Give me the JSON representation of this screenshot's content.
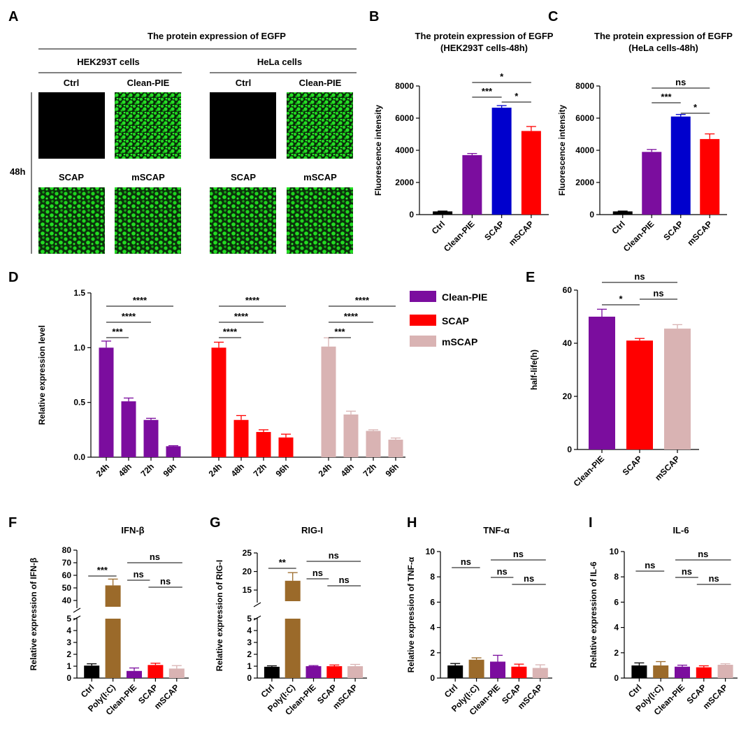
{
  "colors": {
    "ctrl": "#000000",
    "clean_pie": "#7B0D9E",
    "scap_blue": "#0000CD",
    "scap": "#FF0000",
    "mscap": "#D9B3B3",
    "polyic": "#9B6A2A",
    "green": "#1FD41F"
  },
  "panel_A": {
    "label": "A",
    "title": "The protein expression of EGFP",
    "groups": [
      {
        "name": "HEK293T cells",
        "top": [
          "Ctrl",
          "Clean-PIE"
        ],
        "bottom": [
          "SCAP",
          "mSCAP"
        ]
      },
      {
        "name": "HeLa cells",
        "top": [
          "Ctrl",
          "Clean-PIE"
        ],
        "bottom": [
          "SCAP",
          "mSCAP"
        ]
      }
    ],
    "timepoint": "48h"
  },
  "chart_data": [
    {
      "id": "B",
      "type": "bar",
      "label": "B",
      "title": "The protein expression of EGFP",
      "subtitle": "(HEK293T cells-48h)",
      "ylabel": "Fluorescence intensity",
      "xlabel": "",
      "ylim": [
        0,
        8000
      ],
      "yticks": [
        "0",
        "2000",
        "4000",
        "6000",
        "8000"
      ],
      "categories": [
        "Ctrl",
        "Clean-PIE",
        "SCAP",
        "mSCAP"
      ],
      "values": [
        200,
        3700,
        6650,
        5200
      ],
      "errors": [
        20,
        100,
        130,
        280
      ],
      "bar_colors": [
        "#000000",
        "#7B0D9E",
        "#0000CD",
        "#FF0000"
      ],
      "sig": [
        "***",
        "*",
        "*"
      ]
    },
    {
      "id": "C",
      "type": "bar",
      "label": "C",
      "title": "The protein expression of EGFP",
      "subtitle": "(HeLa cells-48h)",
      "ylabel": "Fluorescence intensity",
      "xlabel": "",
      "ylim": [
        0,
        8000
      ],
      "yticks": [
        "0",
        "2000",
        "4000",
        "6000",
        "8000"
      ],
      "categories": [
        "Ctrl",
        "Clean-PIE",
        "SCAP",
        "mSCAP"
      ],
      "values": [
        200,
        3900,
        6100,
        4700
      ],
      "errors": [
        20,
        150,
        130,
        320
      ],
      "bar_colors": [
        "#000000",
        "#7B0D9E",
        "#0000CD",
        "#FF0000"
      ],
      "sig": [
        "ns",
        "***",
        "*"
      ]
    },
    {
      "id": "D",
      "type": "bar",
      "label": "D",
      "title": "",
      "ylabel": "Relative expression level",
      "xlabel": "",
      "ylim": [
        0,
        1.5
      ],
      "yticks": [
        "0.0",
        "0.5",
        "1.0",
        "1.5"
      ],
      "categories": [
        "24h",
        "48h",
        "72h",
        "96h"
      ],
      "series": [
        {
          "name": "Clean-PIE",
          "color": "#7B0D9E",
          "values": [
            1.0,
            0.51,
            0.34,
            0.1
          ],
          "errors": [
            0.06,
            0.03,
            0.015,
            0.005
          ]
        },
        {
          "name": "SCAP",
          "color": "#FF0000",
          "values": [
            1.0,
            0.34,
            0.23,
            0.18
          ],
          "errors": [
            0.05,
            0.04,
            0.02,
            0.03
          ]
        },
        {
          "name": "mSCAP",
          "color": "#D9B3B3",
          "values": [
            1.01,
            0.39,
            0.24,
            0.16
          ],
          "errors": [
            0.08,
            0.03,
            0.01,
            0.015
          ]
        }
      ],
      "sig_per_series": [
        [
          "****",
          "****",
          "***"
        ],
        [
          "****",
          "****",
          "****"
        ],
        [
          "****",
          "****",
          "***"
        ]
      ],
      "legend": [
        "Clean-PIE",
        "SCAP",
        "mSCAP"
      ]
    },
    {
      "id": "E",
      "type": "bar",
      "label": "E",
      "title": "",
      "ylabel": "half-life(h)",
      "xlabel": "",
      "ylim": [
        0,
        60
      ],
      "yticks": [
        "0",
        "20",
        "40",
        "60"
      ],
      "categories": [
        "Clean-PIE",
        "SCAP",
        "mSCAP"
      ],
      "values": [
        50,
        41,
        45.5
      ],
      "errors": [
        2.8,
        0.8,
        1.5
      ],
      "bar_colors": [
        "#7B0D9E",
        "#FF0000",
        "#D9B3B3"
      ],
      "sig": [
        "ns",
        "*",
        "ns"
      ]
    },
    {
      "id": "F",
      "type": "bar",
      "label": "F",
      "title": "IFN-β",
      "ylabel": "Relative expression of IFN-β",
      "xlabel": "",
      "broken_axis": true,
      "lower_ylim": [
        0,
        5
      ],
      "lower_yticks": [
        "0",
        "1",
        "2",
        "3",
        "4",
        "5"
      ],
      "upper_ylim": [
        35,
        80
      ],
      "upper_yticks": [
        "40",
        "50",
        "60",
        "70",
        "80"
      ],
      "categories": [
        "Ctrl",
        "Poly(I:C)",
        "Clean-PIE",
        "SCAP",
        "mSCAP"
      ],
      "values": [
        1.05,
        52,
        0.6,
        1.1,
        0.8
      ],
      "errors": [
        0.15,
        5,
        0.25,
        0.15,
        0.25
      ],
      "bar_colors": [
        "#000000",
        "#9B6A2A",
        "#7B0D9E",
        "#FF0000",
        "#D9B3B3"
      ],
      "sig": [
        "***",
        "ns",
        "ns",
        "ns"
      ]
    },
    {
      "id": "G",
      "type": "bar",
      "label": "G",
      "title": "RIG-I",
      "ylabel": "Relative expression of RIG-I",
      "xlabel": "",
      "broken_axis": true,
      "lower_ylim": [
        0,
        5
      ],
      "lower_yticks": [
        "0",
        "1",
        "2",
        "3",
        "4",
        "5"
      ],
      "upper_ylim": [
        12,
        25
      ],
      "upper_yticks": [
        "15",
        "20",
        "25"
      ],
      "categories": [
        "Ctrl",
        "Poly(I:C)",
        "Clean-PIE",
        "SCAP",
        "mSCAP"
      ],
      "values": [
        0.95,
        17.5,
        1.0,
        1.0,
        1.0
      ],
      "errors": [
        0.08,
        2.2,
        0.05,
        0.1,
        0.15
      ],
      "bar_colors": [
        "#000000",
        "#9B6A2A",
        "#7B0D9E",
        "#FF0000",
        "#D9B3B3"
      ],
      "sig": [
        "**",
        "ns",
        "ns",
        "ns"
      ]
    },
    {
      "id": "H",
      "type": "bar",
      "label": "H",
      "title": "TNF-α",
      "ylabel": "Relative expression of TNF-α",
      "xlabel": "",
      "ylim": [
        0,
        10
      ],
      "yticks": [
        "0",
        "2",
        "4",
        "6",
        "8",
        "10"
      ],
      "categories": [
        "Ctrl",
        "Poly(I:C)",
        "Clean-PIE",
        "SCAP",
        "mSCAP"
      ],
      "values": [
        1.0,
        1.45,
        1.3,
        0.9,
        0.8
      ],
      "errors": [
        0.15,
        0.15,
        0.5,
        0.2,
        0.25
      ],
      "bar_colors": [
        "#000000",
        "#9B6A2A",
        "#7B0D9E",
        "#FF0000",
        "#D9B3B3"
      ],
      "sig": [
        "ns",
        "ns",
        "ns",
        "ns"
      ]
    },
    {
      "id": "I",
      "type": "bar",
      "label": "I",
      "title": "IL-6",
      "ylabel": "Relative expression of IL-6",
      "xlabel": "",
      "ylim": [
        0,
        10
      ],
      "yticks": [
        "0",
        "2",
        "4",
        "6",
        "8",
        "10"
      ],
      "categories": [
        "Ctrl",
        "Poly(I:C)",
        "Clean-PIE",
        "SCAP",
        "mSCAP"
      ],
      "values": [
        1.0,
        1.0,
        0.9,
        0.85,
        1.05
      ],
      "errors": [
        0.2,
        0.3,
        0.12,
        0.12,
        0.08
      ],
      "bar_colors": [
        "#000000",
        "#9B6A2A",
        "#7B0D9E",
        "#FF0000",
        "#D9B3B3"
      ],
      "sig": [
        "ns",
        "ns",
        "ns",
        "ns"
      ]
    }
  ]
}
